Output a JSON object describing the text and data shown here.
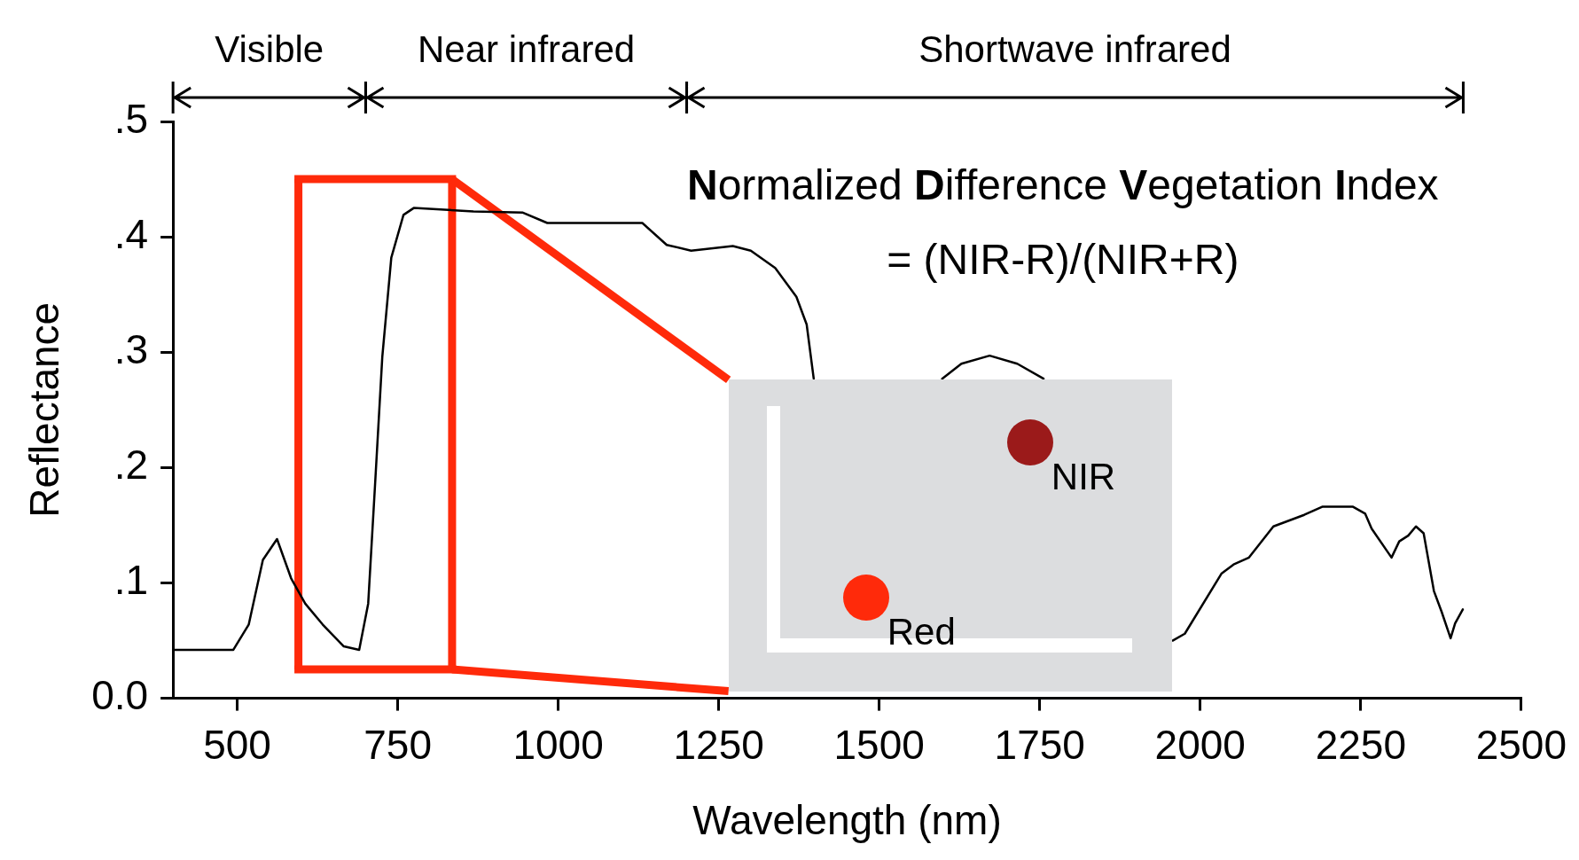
{
  "chart_data": [
    {
      "type": "line",
      "xlabel": "Wavelength (nm)",
      "ylabel": "Reflectance",
      "annotations": [
        "Visible",
        "Near infrared",
        "Shortwave infrared",
        "Normalized Difference Vegetation Index",
        "= (NIR-R)/(NIR+R)"
      ],
      "series": [
        {
          "color": "#000000",
          "x": [
            401,
            494,
            518,
            540,
            562,
            584,
            606,
            633,
            666,
            690,
            704,
            715,
            726,
            740,
            759,
            775,
            868,
            945,
            983,
            1131,
            1169,
            1207,
            1272,
            1300,
            1338,
            1371,
            1387,
            1398,
            1500,
            1598,
            1628,
            1672,
            1715,
            1756,
            1850,
            1957,
            1976,
            2033,
            2052,
            2076,
            2114,
            2162,
            2190,
            2238,
            2257,
            2267,
            2298,
            2310,
            2324,
            2336,
            2348,
            2364,
            2376,
            2390,
            2397,
            2409
          ],
          "values": [
            0.042,
            0.042,
            0.064,
            0.12,
            0.138,
            0.104,
            0.082,
            0.064,
            0.045,
            0.042,
            0.082,
            0.188,
            0.296,
            0.382,
            0.419,
            0.425,
            0.422,
            0.421,
            0.412,
            0.412,
            0.393,
            0.388,
            0.392,
            0.388,
            0.373,
            0.348,
            0.324,
            0.277,
            null,
            0.277,
            0.29,
            0.297,
            0.29,
            0.277,
            null,
            0.05,
            0.056,
            0.108,
            0.116,
            0.122,
            0.149,
            0.159,
            0.166,
            0.166,
            0.16,
            0.147,
            0.122,
            0.136,
            0.141,
            0.149,
            0.143,
            0.093,
            0.075,
            0.052,
            0.065,
            0.077
          ]
        }
      ],
      "xlim": [
        400,
        2500
      ],
      "xticks": [
        500,
        750,
        1000,
        1250,
        1500,
        1750,
        2000,
        2250,
        2500
      ],
      "ylim": [
        0,
        0.5
      ],
      "yticks": [
        {
          "value": 0,
          "label": "0.0"
        },
        {
          "value": 0.1,
          "label": ".1"
        },
        {
          "value": 0.2,
          "label": ".2"
        },
        {
          "value": 0.3,
          "label": ".3"
        },
        {
          "value": 0.4,
          "label": ".4"
        },
        {
          "value": 0.5,
          "label": ".5"
        }
      ],
      "grid": false,
      "legend": false,
      "marker": "none",
      "line_style": "solid"
    },
    {
      "type": "other",
      "annotations": [
        "NIR",
        "Red"
      ],
      "colors": [
        "#9b1a1a",
        "#ff2a0a"
      ]
    }
  ]
}
